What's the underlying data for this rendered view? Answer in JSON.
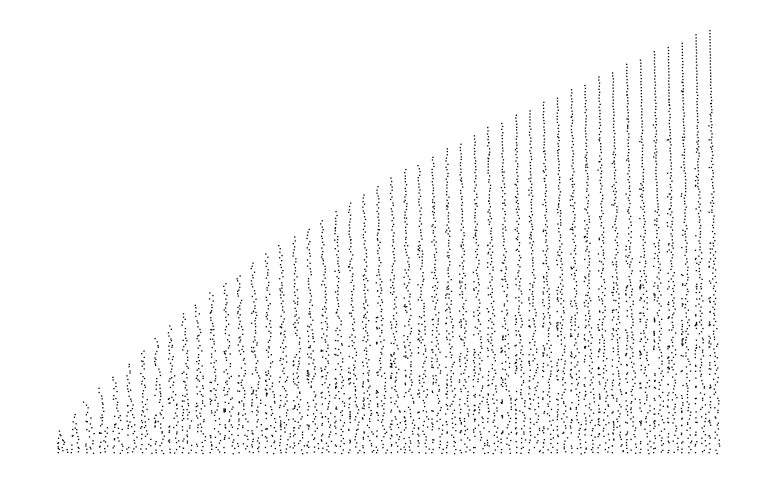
{
  "chart_data": {
    "type": "scatter",
    "title": "",
    "xlabel": "",
    "ylabel": "",
    "axes_visible": false,
    "grid": false,
    "legend": "none",
    "colors": {
      "marker": "#000000",
      "background": "#ffffff"
    },
    "x_range": [
      0,
      50
    ],
    "y_range": [
      0,
      1
    ],
    "series": [
      {
        "values_note_free": true,
        "columns": [
          {
            "x": 1,
            "y_max": 0.05
          },
          {
            "x": 2,
            "y_max": 0.09
          },
          {
            "x": 3,
            "y_max": 0.12
          },
          {
            "x": 4,
            "y_max": 0.15
          },
          {
            "x": 5,
            "y_max": 0.18
          },
          {
            "x": 6,
            "y_max": 0.21
          },
          {
            "x": 7,
            "y_max": 0.24
          },
          {
            "x": 8,
            "y_max": 0.27
          },
          {
            "x": 9,
            "y_max": 0.3
          },
          {
            "x": 10,
            "y_max": 0.33
          },
          {
            "x": 11,
            "y_max": 0.35
          },
          {
            "x": 12,
            "y_max": 0.38
          },
          {
            "x": 13,
            "y_max": 0.4
          },
          {
            "x": 14,
            "y_max": 0.42
          },
          {
            "x": 15,
            "y_max": 0.45
          },
          {
            "x": 16,
            "y_max": 0.47
          },
          {
            "x": 17,
            "y_max": 0.49
          },
          {
            "x": 18,
            "y_max": 0.51
          },
          {
            "x": 19,
            "y_max": 0.53
          },
          {
            "x": 20,
            "y_max": 0.55
          },
          {
            "x": 21,
            "y_max": 0.57
          },
          {
            "x": 22,
            "y_max": 0.59
          },
          {
            "x": 23,
            "y_max": 0.61
          },
          {
            "x": 24,
            "y_max": 0.63
          },
          {
            "x": 25,
            "y_max": 0.65
          },
          {
            "x": 26,
            "y_max": 0.67
          },
          {
            "x": 27,
            "y_max": 0.68
          },
          {
            "x": 28,
            "y_max": 0.7
          },
          {
            "x": 29,
            "y_max": 0.72
          },
          {
            "x": 30,
            "y_max": 0.73
          },
          {
            "x": 31,
            "y_max": 0.75
          },
          {
            "x": 32,
            "y_max": 0.77
          },
          {
            "x": 33,
            "y_max": 0.78
          },
          {
            "x": 34,
            "y_max": 0.8
          },
          {
            "x": 35,
            "y_max": 0.81
          },
          {
            "x": 36,
            "y_max": 0.83
          },
          {
            "x": 37,
            "y_max": 0.84
          },
          {
            "x": 38,
            "y_max": 0.86
          },
          {
            "x": 39,
            "y_max": 0.87
          },
          {
            "x": 40,
            "y_max": 0.89
          },
          {
            "x": 41,
            "y_max": 0.9
          },
          {
            "x": 42,
            "y_max": 0.92
          },
          {
            "x": 43,
            "y_max": 0.93
          },
          {
            "x": 44,
            "y_max": 0.95
          },
          {
            "x": 45,
            "y_max": 0.96
          },
          {
            "x": 46,
            "y_max": 0.97
          },
          {
            "x": 47,
            "y_max": 0.99
          },
          {
            "x": 48,
            "y_max": 1.0
          }
        ]
      }
    ]
  }
}
